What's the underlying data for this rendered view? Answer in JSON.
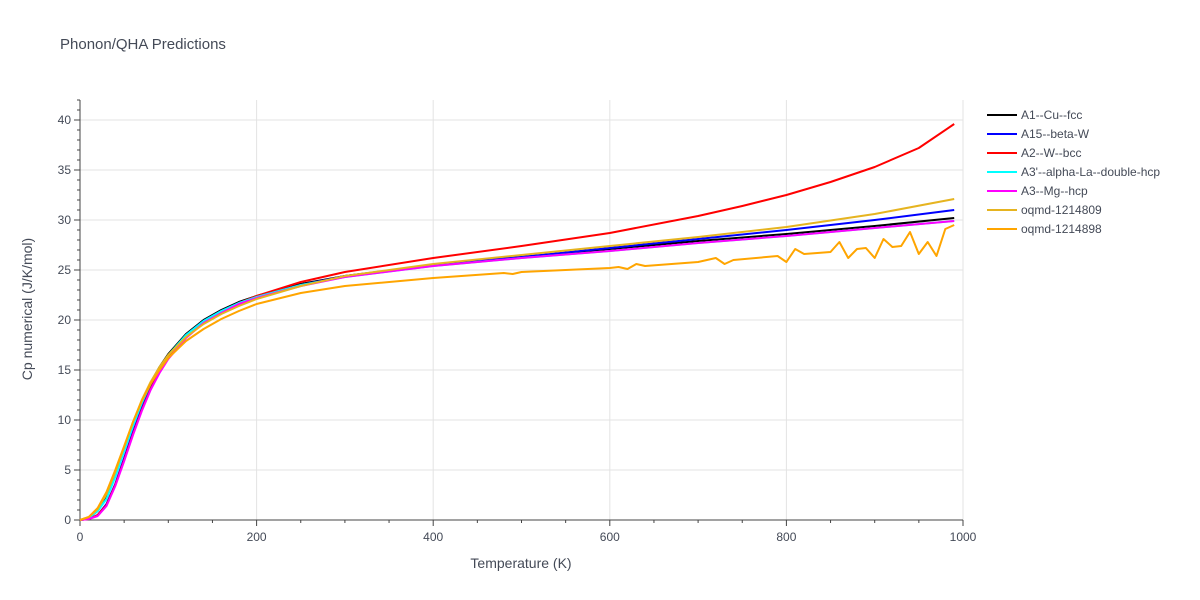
{
  "chart_data": {
    "type": "line",
    "title": "Phonon/QHA Predictions",
    "xlabel": "Temperature (K)",
    "ylabel": "Cp numerical (J/K/mol)",
    "xlim": [
      0,
      1000
    ],
    "ylim": [
      0,
      42
    ],
    "xticks": [
      0,
      200,
      400,
      600,
      800,
      1000
    ],
    "yticks": [
      0,
      5,
      10,
      15,
      20,
      25,
      30,
      35,
      40
    ],
    "grid": true,
    "legend_position": "top-right",
    "series": [
      {
        "name": "A1--Cu--fcc",
        "color": "#000000",
        "x": [
          0,
          10,
          20,
          30,
          40,
          50,
          60,
          70,
          80,
          90,
          100,
          120,
          140,
          160,
          180,
          200,
          250,
          300,
          400,
          500,
          600,
          700,
          800,
          900,
          990
        ],
        "y": [
          0,
          0.2,
          0.9,
          2.2,
          4.4,
          7.0,
          9.5,
          11.8,
          13.7,
          15.3,
          16.6,
          18.6,
          20.0,
          21.0,
          21.8,
          22.4,
          23.6,
          24.4,
          25.5,
          26.3,
          27.1,
          27.9,
          28.6,
          29.4,
          30.2
        ]
      },
      {
        "name": "A15--beta-W",
        "color": "#0000ff",
        "x": [
          0,
          10,
          20,
          30,
          40,
          50,
          60,
          70,
          80,
          90,
          100,
          120,
          140,
          160,
          180,
          200,
          250,
          300,
          400,
          500,
          600,
          700,
          800,
          900,
          990
        ],
        "y": [
          0,
          0.1,
          0.5,
          1.6,
          3.6,
          6.2,
          8.8,
          11.2,
          13.3,
          15.0,
          16.4,
          18.5,
          19.9,
          20.9,
          21.7,
          22.3,
          23.5,
          24.4,
          25.5,
          26.3,
          27.2,
          28.1,
          29.0,
          30.0,
          31.0
        ]
      },
      {
        "name": "A2--W--bcc",
        "color": "#ff0000",
        "x": [
          0,
          10,
          20,
          30,
          40,
          50,
          60,
          70,
          80,
          90,
          100,
          120,
          140,
          160,
          180,
          200,
          250,
          300,
          400,
          500,
          600,
          700,
          750,
          800,
          850,
          900,
          950,
          990
        ],
        "y": [
          0,
          0.1,
          0.5,
          1.5,
          3.5,
          6.0,
          8.6,
          11.0,
          13.1,
          14.8,
          16.2,
          18.3,
          19.8,
          20.8,
          21.7,
          22.4,
          23.8,
          24.8,
          26.2,
          27.4,
          28.7,
          30.4,
          31.4,
          32.5,
          33.8,
          35.3,
          37.2,
          39.6
        ]
      },
      {
        "name": "A3'--alpha-La--double-hcp",
        "color": "#00ffff",
        "x": [
          0,
          10,
          20,
          30,
          40,
          50,
          60,
          70,
          80,
          90,
          100,
          120,
          140,
          160,
          180,
          200,
          250,
          300,
          400,
          500,
          600,
          700,
          800,
          900,
          990
        ],
        "y": [
          0,
          0.2,
          0.9,
          2.1,
          4.3,
          6.9,
          9.4,
          11.7,
          13.6,
          15.2,
          16.5,
          18.5,
          19.9,
          20.9,
          21.7,
          22.3,
          23.5,
          24.3,
          25.4,
          26.2,
          26.9,
          27.7,
          28.4,
          29.2,
          29.9
        ]
      },
      {
        "name": "A3--Mg--hcp",
        "color": "#ff00ff",
        "x": [
          0,
          10,
          20,
          30,
          40,
          50,
          60,
          70,
          80,
          90,
          100,
          120,
          140,
          160,
          180,
          200,
          250,
          300,
          400,
          500,
          600,
          700,
          800,
          900,
          990
        ],
        "y": [
          0,
          0.1,
          0.4,
          1.4,
          3.4,
          5.9,
          8.5,
          10.9,
          13.0,
          14.7,
          16.1,
          18.2,
          19.7,
          20.7,
          21.6,
          22.2,
          23.4,
          24.3,
          25.4,
          26.2,
          26.9,
          27.7,
          28.4,
          29.2,
          29.9
        ]
      },
      {
        "name": "oqmd-1214809",
        "color": "#e6b420",
        "x": [
          0,
          10,
          20,
          30,
          40,
          50,
          60,
          70,
          80,
          90,
          100,
          120,
          140,
          160,
          180,
          200,
          250,
          300,
          400,
          500,
          600,
          700,
          800,
          900,
          990
        ],
        "y": [
          0,
          0.3,
          1.1,
          2.6,
          4.8,
          7.3,
          9.8,
          12.0,
          13.8,
          15.3,
          16.5,
          18.3,
          19.6,
          20.6,
          21.4,
          22.1,
          23.4,
          24.4,
          25.6,
          26.5,
          27.4,
          28.3,
          29.3,
          30.6,
          32.1
        ]
      },
      {
        "name": "oqmd-1214898",
        "color": "#ffa500",
        "x": [
          0,
          10,
          20,
          30,
          40,
          50,
          60,
          70,
          80,
          90,
          100,
          120,
          140,
          160,
          180,
          200,
          250,
          300,
          400,
          480,
          490,
          500,
          600,
          610,
          620,
          630,
          640,
          700,
          720,
          730,
          740,
          790,
          800,
          810,
          820,
          850,
          860,
          870,
          880,
          890,
          900,
          910,
          920,
          930,
          940,
          950,
          960,
          970,
          980,
          990
        ],
        "y": [
          0,
          0.3,
          1.2,
          2.8,
          5.0,
          7.4,
          9.8,
          11.9,
          13.6,
          15.0,
          16.2,
          17.9,
          19.1,
          20.1,
          20.9,
          21.6,
          22.7,
          23.4,
          24.2,
          24.7,
          24.6,
          24.8,
          25.2,
          25.3,
          25.1,
          25.6,
          25.4,
          25.8,
          26.2,
          25.6,
          26.0,
          26.4,
          25.8,
          27.1,
          26.6,
          26.8,
          27.8,
          26.2,
          27.1,
          27.2,
          26.2,
          28.1,
          27.3,
          27.4,
          28.8,
          26.6,
          27.8,
          26.4,
          29.1,
          29.5
        ]
      }
    ]
  }
}
